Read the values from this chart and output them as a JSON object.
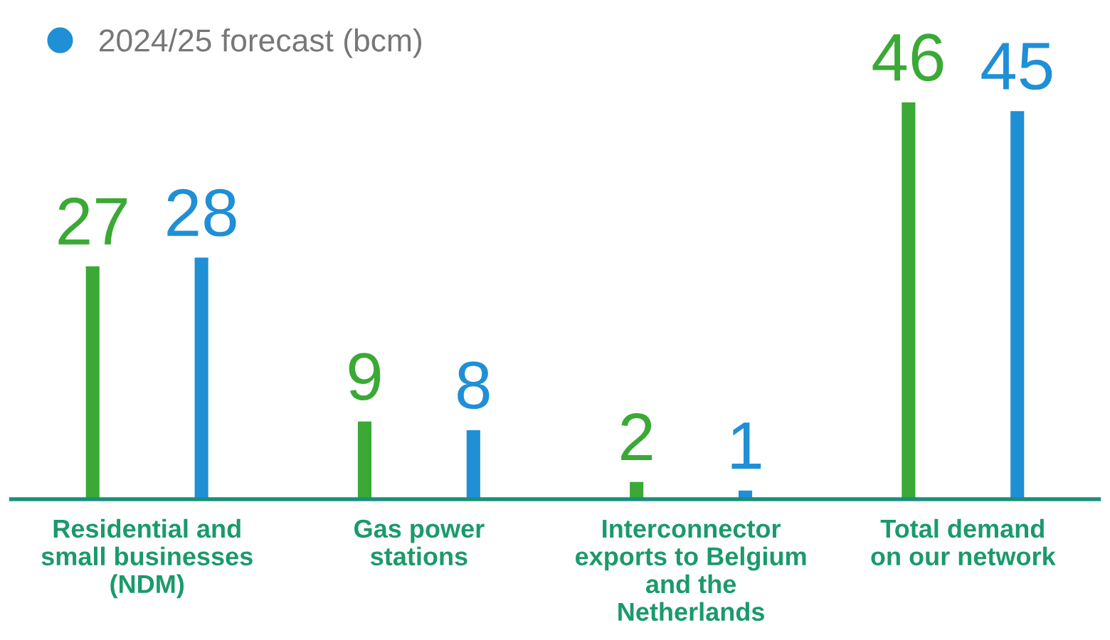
{
  "chart_data": {
    "type": "bar",
    "categories": [
      "Residential and\nsmall businesses\n(NDM)",
      "Gas power\nstations",
      "Interconnector\nexports to Belgium\nand the\nNetherlands",
      "Total demand\non our network"
    ],
    "series": [
      {
        "color": "#3aa935",
        "values": [
          27,
          9,
          2,
          46
        ]
      },
      {
        "name": "2024/25 forecast (bcm)",
        "color": "#1f8fd6",
        "values": [
          28,
          8,
          1,
          45
        ]
      }
    ],
    "data_labels": true,
    "legend": "top left",
    "grid": false
  }
}
